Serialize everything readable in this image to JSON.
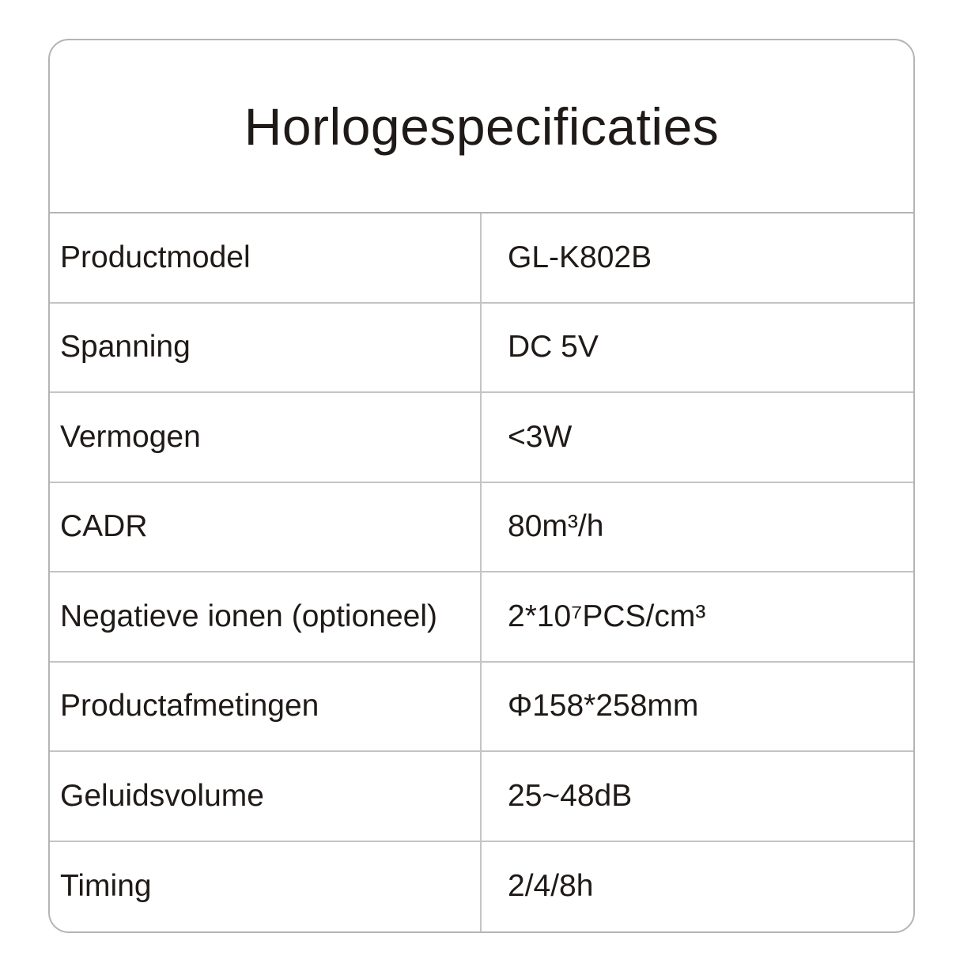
{
  "title": "Horlogespecificaties",
  "rows": [
    {
      "label": "Productmodel",
      "value": "GL-K802B"
    },
    {
      "label": "Spanning",
      "value": "DC 5V"
    },
    {
      "label": "Vermogen",
      "value": "<3W"
    },
    {
      "label": "CADR",
      "value": "80m³/h"
    },
    {
      "label": "Negatieve ionen (optioneel)",
      "value": "2*10⁷PCS/cm³"
    },
    {
      "label": "Productafmetingen",
      "value": "Φ158*258mm"
    },
    {
      "label": "Geluidsvolume",
      "value": "25~48dB"
    },
    {
      "label": "Timing",
      "value": "2/4/8h"
    }
  ]
}
